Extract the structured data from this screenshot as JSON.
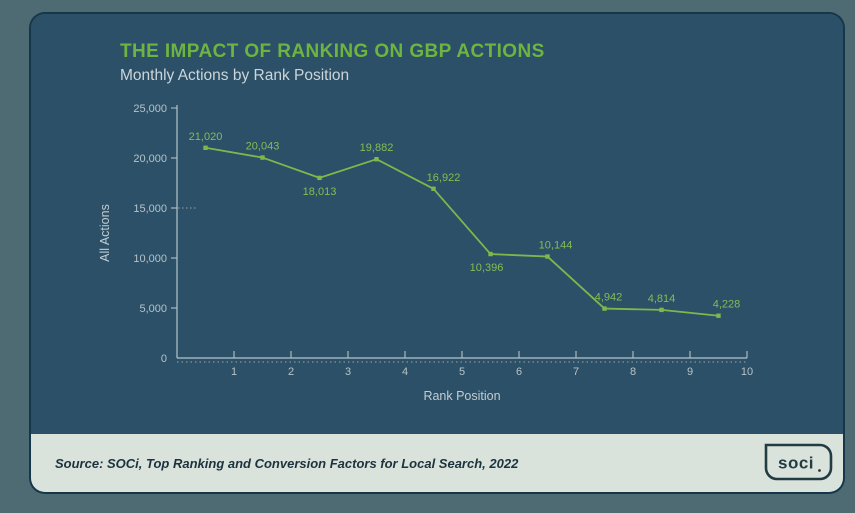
{
  "page": {
    "title": "THE IMPACT OF RANKING ON GBP ACTIONS",
    "subtitle": "Monthly Actions by Rank Position"
  },
  "footer": {
    "source_text": "Source: SOCi, Top Ranking and Conversion Factors for Local Search, 2022",
    "logo_text": "soci"
  },
  "colors": {
    "outer_bg": "#4e6a72",
    "card_bg": "#2b5067",
    "card_border": "#16374a",
    "accent_green": "#6eb440",
    "line_green": "#7db84c",
    "label_green": "#85bd53",
    "axis_gray": "#b6c3c9",
    "text_light": "#c3cdd2",
    "footer_bg": "#dae2dc",
    "footer_text": "#1c333d"
  },
  "chart_data": {
    "type": "line",
    "title": "THE IMPACT OF RANKING ON GBP ACTIONS",
    "subtitle": "Monthly Actions by Rank Position",
    "xlabel": "Rank Position",
    "ylabel": "All Actions",
    "x": [
      1,
      2,
      3,
      4,
      5,
      6,
      7,
      8,
      9,
      10
    ],
    "values": [
      21020,
      20043,
      18013,
      19882,
      16922,
      10396,
      10144,
      4942,
      4814,
      4228
    ],
    "point_labels": [
      "21,020",
      "20,043",
      "18,013",
      "19,882",
      "16,922",
      "10,396",
      "10,144",
      "4,942",
      "4,814",
      "4,228"
    ],
    "label_positions": [
      "above",
      "above",
      "below",
      "above",
      "above",
      "below",
      "above",
      "above",
      "above",
      "above"
    ],
    "label_dx": [
      0,
      0,
      0,
      0,
      10,
      -4,
      8,
      4,
      0,
      8
    ],
    "xticks": [
      "1",
      "2",
      "3",
      "4",
      "5",
      "6",
      "7",
      "8",
      "9",
      "10"
    ],
    "xlim": [
      0,
      10
    ],
    "ylim": [
      0,
      25000
    ],
    "ytick_step": 5000,
    "ytick_labels": [
      "0",
      "5,000",
      "10,000",
      "15,000",
      "20,000",
      "25,000"
    ],
    "grid": false,
    "legend": null
  }
}
